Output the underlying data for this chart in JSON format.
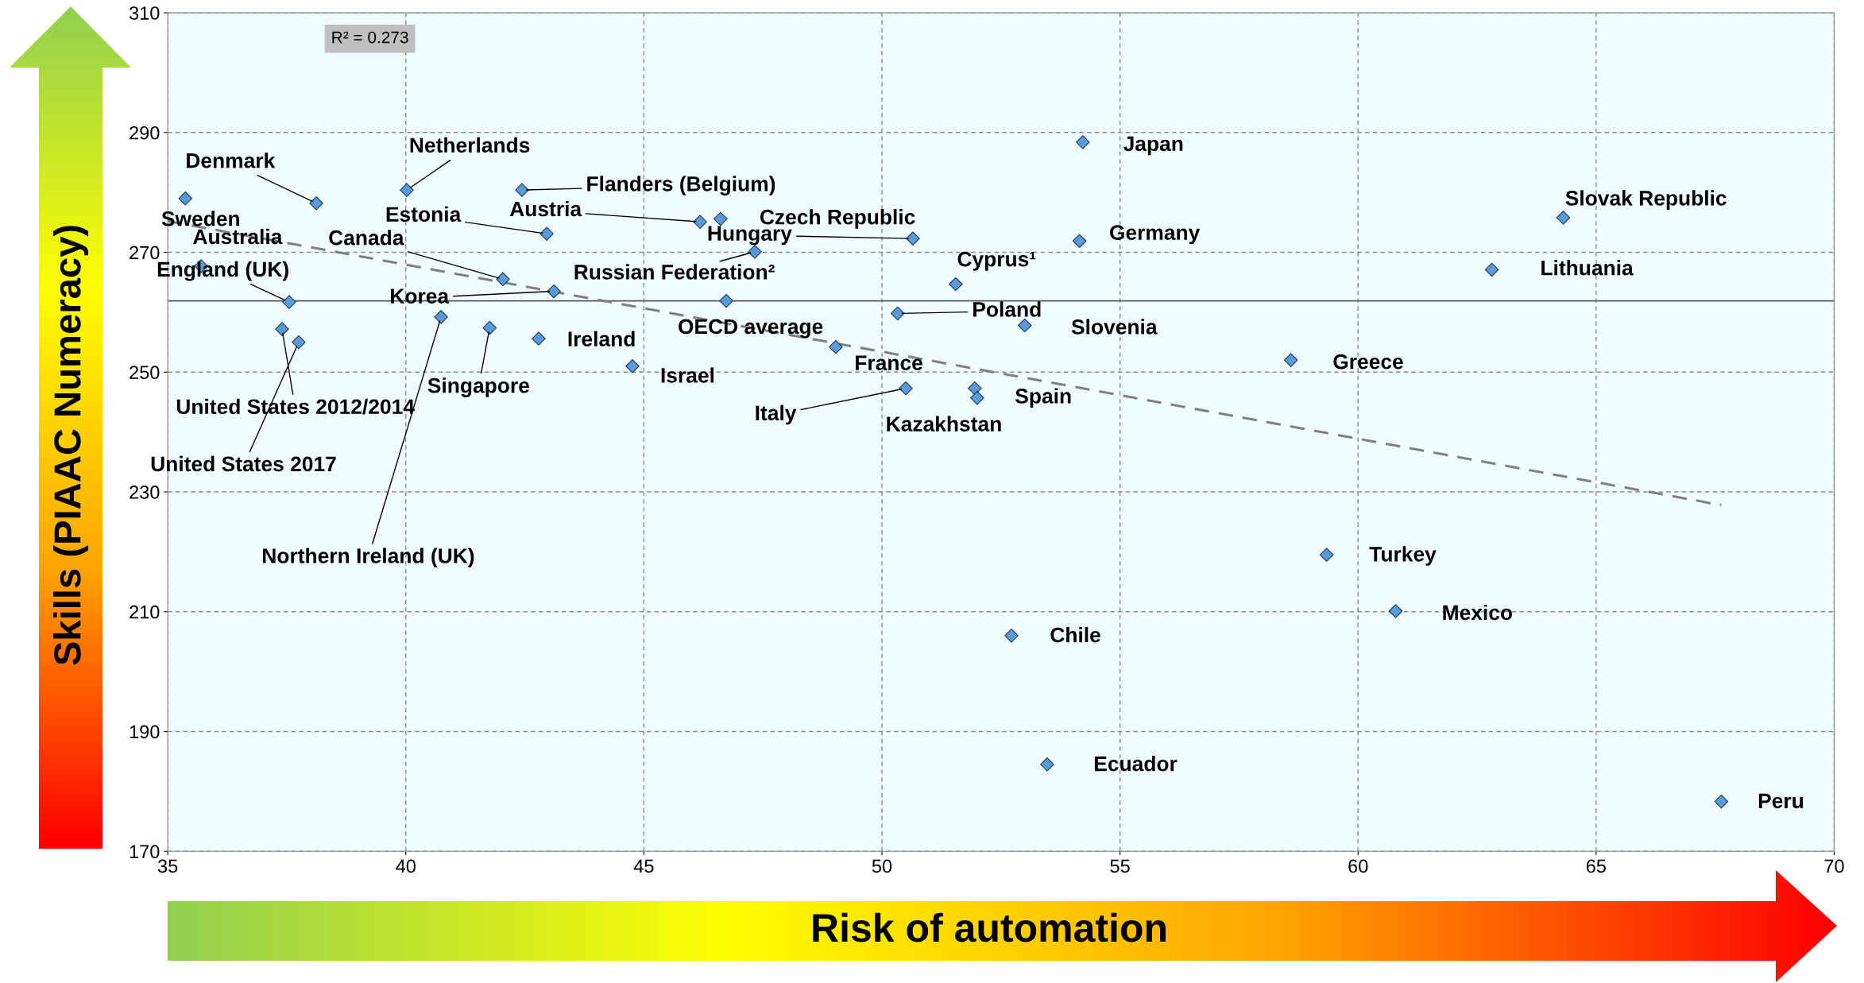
{
  "chart_data": {
    "type": "scatter",
    "xlabel": "Risk of automation",
    "ylabel": "Skills (PIAAC Numeracy)",
    "xlim": [
      35,
      70
    ],
    "xticks": [
      35,
      40,
      45,
      50,
      55,
      60,
      65,
      70
    ],
    "ylim": [
      170,
      310
    ],
    "yticks": [
      170,
      190,
      210,
      230,
      250,
      270,
      290,
      310
    ],
    "grid": true,
    "series": [
      {
        "marker": "diamond",
        "color": "#5b9bd5",
        "x": [
          35.37,
          38.12,
          40.02,
          42.44,
          35.7,
          37.55,
          37.4,
          37.75,
          42.96,
          46.18,
          46.61,
          50.65,
          42.04,
          43.11,
          47.33,
          46.73,
          40.74,
          41.76,
          42.79,
          44.76,
          49.03,
          50.5,
          51.95,
          52.0,
          50.33,
          51.55,
          53.0,
          54.22,
          54.15,
          58.59,
          64.31,
          62.81,
          59.34,
          60.79,
          52.72,
          53.47,
          67.63
        ],
        "values": [
          279.0,
          278.2,
          280.4,
          280.4,
          267.7,
          261.7,
          257.2,
          255.0,
          273.1,
          275.1,
          275.6,
          272.3,
          265.5,
          263.5,
          270.1,
          261.9,
          259.2,
          257.4,
          255.6,
          251.0,
          254.2,
          247.3,
          247.3,
          245.7,
          259.8,
          264.7,
          257.8,
          288.4,
          271.9,
          252.0,
          275.8,
          267.1,
          219.5,
          210.1,
          206.0,
          184.5,
          178.3
        ]
      },
      {
        "type": "line",
        "marker": "none",
        "color": "#808080",
        "line_style": "dashed",
        "x": [
          35,
          67.63
        ],
        "values": [
          275.2,
          227.8
        ]
      }
    ],
    "ref_lines": [
      {
        "axis": "y",
        "value": 261.9,
        "label": null,
        "color": "#595959",
        "line_style": "solid"
      }
    ],
    "annotations": [
      {
        "text": "Sweden",
        "x": 35.37,
        "y": 279.0
      },
      {
        "text": "Denmark",
        "x": 38.12,
        "y": 278.2
      },
      {
        "text": "Netherlands",
        "x": 40.02,
        "y": 280.4
      },
      {
        "text": "Flanders (Belgium)",
        "x": 42.44,
        "y": 280.4
      },
      {
        "text": "Australia",
        "x": 35.7,
        "y": 267.7
      },
      {
        "text": "England (UK)",
        "x": 37.55,
        "y": 261.7
      },
      {
        "text": "United States 2012/2014",
        "x": 37.4,
        "y": 257.2
      },
      {
        "text": "United States 2017",
        "x": 37.75,
        "y": 255.0
      },
      {
        "text": "Estonia",
        "x": 42.96,
        "y": 273.1
      },
      {
        "text": "Austria",
        "x": 46.18,
        "y": 275.1
      },
      {
        "text": "Czech Republic",
        "x": 46.61,
        "y": 275.6
      },
      {
        "text": "Hungary",
        "x": 50.65,
        "y": 272.3
      },
      {
        "text": "Canada",
        "x": 42.04,
        "y": 265.5
      },
      {
        "text": "Korea",
        "x": 43.11,
        "y": 263.5
      },
      {
        "text": "Russian Federation²",
        "x": 47.33,
        "y": 270.1
      },
      {
        "text": "OECD average",
        "x": 46.73,
        "y": 261.9
      },
      {
        "text": "Northern Ireland (UK)",
        "x": 40.74,
        "y": 259.2
      },
      {
        "text": "Singapore",
        "x": 41.76,
        "y": 257.4
      },
      {
        "text": "Ireland",
        "x": 42.79,
        "y": 255.6
      },
      {
        "text": "Israel",
        "x": 44.76,
        "y": 251.0
      },
      {
        "text": "France",
        "x": 49.03,
        "y": 254.2
      },
      {
        "text": "Italy",
        "x": 50.5,
        "y": 247.3
      },
      {
        "text": "Kazakhstan",
        "x": 51.95,
        "y": 247.3
      },
      {
        "text": "Spain",
        "x": 52.0,
        "y": 245.7
      },
      {
        "text": "Poland",
        "x": 50.33,
        "y": 259.8
      },
      {
        "text": "Cyprus¹",
        "x": 51.55,
        "y": 264.7
      },
      {
        "text": "Slovenia",
        "x": 53.0,
        "y": 257.8
      },
      {
        "text": "Japan",
        "x": 54.22,
        "y": 288.4
      },
      {
        "text": "Germany",
        "x": 54.15,
        "y": 271.9
      },
      {
        "text": "Greece",
        "x": 58.59,
        "y": 252.0
      },
      {
        "text": "Slovak Republic",
        "x": 64.31,
        "y": 275.8
      },
      {
        "text": "Lithuania",
        "x": 62.81,
        "y": 267.1
      },
      {
        "text": "Turkey",
        "x": 59.34,
        "y": 219.5
      },
      {
        "text": "Mexico",
        "x": 60.79,
        "y": 210.1
      },
      {
        "text": "Chile",
        "x": 52.72,
        "y": 206.0
      },
      {
        "text": "Ecuador",
        "x": 53.47,
        "y": 184.5
      },
      {
        "text": "Peru",
        "x": 67.63,
        "y": 178.3
      },
      "R² = 0.273"
    ]
  }
}
